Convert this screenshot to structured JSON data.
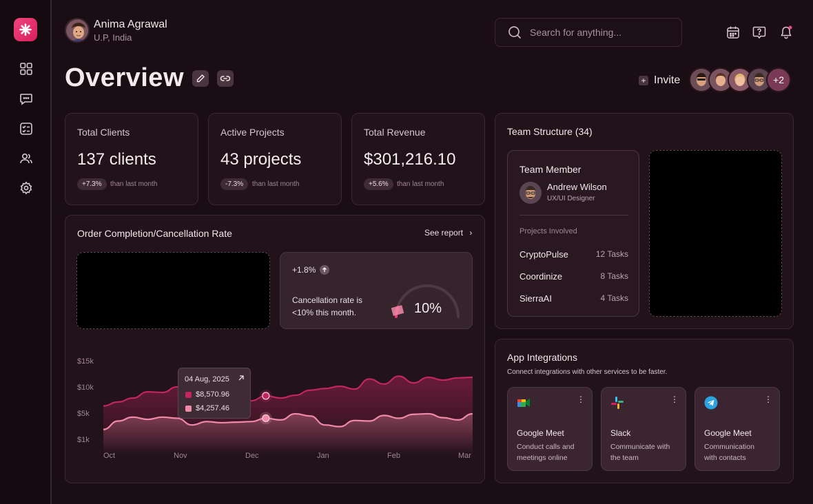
{
  "user": {
    "name": "Anima Agrawal",
    "location": "U.P, India"
  },
  "search": {
    "placeholder": "Search for anything..."
  },
  "page": {
    "title": "Overview",
    "invite_label": "Invite",
    "extra_members": "+2"
  },
  "stats": [
    {
      "label": "Total Clients",
      "value": "137 clients",
      "change": "+7.3%",
      "sub": "than last month"
    },
    {
      "label": "Active Projects",
      "value": "43 projects",
      "change": "-7.3%",
      "sub": "than last month"
    },
    {
      "label": "Total Revenue",
      "value": "$301,216.10",
      "change": "+5.6%",
      "sub": "than last month"
    }
  ],
  "order_chart": {
    "title": "Order Completion/Cancellation Rate",
    "see_report": "See report",
    "cancel": {
      "change": "+1.8%",
      "text_line1": "Cancellation rate is",
      "text_line2": "<10% this month.",
      "gauge_value": "10%",
      "gauge_fraction": 0.1
    },
    "tooltip": {
      "date": "04 Aug, 2025",
      "value1": "$8,570.96",
      "value2": "$4,257.46"
    }
  },
  "chart_data": {
    "type": "area",
    "categories": [
      "Oct",
      "Nov",
      "Dec",
      "Jan",
      "Feb",
      "Mar"
    ],
    "ylim": [
      1000,
      15000
    ],
    "yticks": [
      "$15k",
      "$10k",
      "$5k",
      "$1k"
    ],
    "series": [
      {
        "name": "",
        "color": "#c2265f",
        "x": [
          0,
          0.2,
          0.4,
          0.6,
          0.8,
          1.0,
          1.2,
          1.4,
          1.6,
          1.8,
          2.0,
          2.2,
          2.4,
          2.6,
          2.8,
          3.0,
          3.2,
          3.4,
          3.6,
          3.8,
          4.0,
          4.2,
          4.4,
          4.6,
          4.8,
          5.0
        ],
        "values": [
          7200,
          7900,
          8600,
          9700,
          9600,
          10600,
          9400,
          9900,
          8900,
          8600,
          8100,
          9000,
          8600,
          9100,
          10000,
          10300,
          10700,
          10200,
          12000,
          11100,
          12500,
          11300,
          12300,
          11800,
          12200,
          12300
        ]
      },
      {
        "name": "",
        "color": "#f08aa8",
        "x": [
          0,
          0.2,
          0.4,
          0.6,
          0.8,
          1.0,
          1.2,
          1.4,
          1.6,
          1.8,
          2.0,
          2.2,
          2.4,
          2.6,
          2.8,
          3.0,
          3.2,
          3.4,
          3.6,
          3.8,
          4.0,
          4.2,
          4.4,
          4.6,
          4.8,
          5.0
        ],
        "values": [
          3000,
          4500,
          5200,
          4800,
          5200,
          5000,
          3800,
          4400,
          4200,
          4300,
          4400,
          5000,
          4700,
          5800,
          5400,
          3800,
          3500,
          4600,
          4500,
          5500,
          5000,
          5700,
          5800,
          5100,
          4700,
          5800
        ]
      }
    ]
  },
  "team": {
    "title": "Team Structure (34)",
    "member_heading": "Team Member",
    "member_name": "Andrew Wilson",
    "member_role": "UX/UI Designer",
    "projects_label": "Projects Involved",
    "projects": [
      {
        "name": "CryptoPulse",
        "tasks": "12 Tasks"
      },
      {
        "name": "Coordinize",
        "tasks": "8 Tasks"
      },
      {
        "name": "SierraAI",
        "tasks": "4 Tasks"
      }
    ]
  },
  "integrations": {
    "title": "App Integrations",
    "subtitle": "Connect integrations with other services to be faster.",
    "items": [
      {
        "name": "Google Meet",
        "desc_line1": "Conduct calls and",
        "desc_line2": "meetings online",
        "icon": "google-meet-icon"
      },
      {
        "name": "Slack",
        "desc_line1": "Communicate with",
        "desc_line2": "the team",
        "icon": "slack-icon"
      },
      {
        "name": "Google Meet",
        "desc_line1": "Communication",
        "desc_line2": "with contacts",
        "icon": "telegram-icon"
      }
    ]
  },
  "colors": {
    "accent": "#e83a77",
    "background": "#1a0d14",
    "card": "#22121a"
  }
}
